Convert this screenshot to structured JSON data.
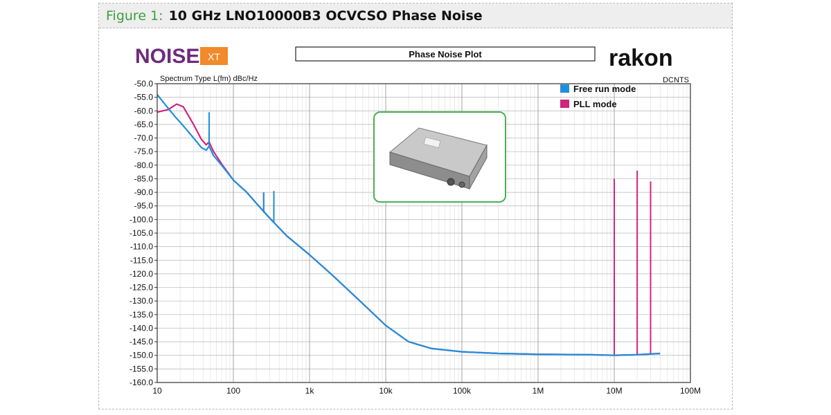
{
  "figure_caption": {
    "label": "Figure 1:",
    "text": "10 GHz  LNO10000B3 OCVCSO Phase Noise"
  },
  "logos": {
    "left_main": "NOISE",
    "left_badge": "XT",
    "right": "rakon"
  },
  "colors": {
    "free_run": "#1f8fdb",
    "pll": "#d0237e",
    "logo_purple": "#6e2a7d",
    "logo_orange": "#f08a2a",
    "photo_border": "#4caf50"
  },
  "chart_data": {
    "type": "line",
    "title": "Phase Noise Plot",
    "spectrum_label": "Spectrum Type   L(fm) dBc/Hz",
    "corner_label": "DCNTS",
    "xscale": "log",
    "xlim": [
      10,
      100000000
    ],
    "ylim": [
      -160,
      -50
    ],
    "y_step": 5,
    "grid": true,
    "legend_position": "top-right",
    "x_ticks": [
      {
        "v": 10,
        "label": "10"
      },
      {
        "v": 100,
        "label": "100"
      },
      {
        "v": 1000,
        "label": "1k"
      },
      {
        "v": 10000,
        "label": "10k"
      },
      {
        "v": 100000,
        "label": "100k"
      },
      {
        "v": 1000000,
        "label": "1M"
      },
      {
        "v": 10000000,
        "label": "10M"
      },
      {
        "v": 100000000,
        "label": "100M"
      }
    ],
    "y_ticks": [
      "-50.0",
      "-55.0",
      "-60.0",
      "-65.0",
      "-70.0",
      "-75.0",
      "-80.0",
      "-85.0",
      "-90.0",
      "-95.0",
      "-100.0",
      "-105.0",
      "-110.0",
      "-115.0",
      "-120.0",
      "-125.0",
      "-130.0",
      "-135.0",
      "-140.0",
      "-145.0",
      "-150.0",
      "-155.0",
      "-160.0"
    ],
    "series": [
      {
        "name": "Free run mode",
        "color": "#1f8fdb",
        "points": [
          [
            10,
            -54
          ],
          [
            13,
            -58
          ],
          [
            17,
            -62
          ],
          [
            22,
            -65.5
          ],
          [
            30,
            -70
          ],
          [
            38,
            -73.5
          ],
          [
            44,
            -74.5
          ],
          [
            48,
            -73
          ],
          [
            55,
            -76.5
          ],
          [
            70,
            -80
          ],
          [
            100,
            -85.5
          ],
          [
            150,
            -90
          ],
          [
            200,
            -94
          ],
          [
            300,
            -99.5
          ],
          [
            500,
            -106
          ],
          [
            1000,
            -113
          ],
          [
            2000,
            -120.5
          ],
          [
            5000,
            -131
          ],
          [
            10000,
            -139
          ],
          [
            20000,
            -145
          ],
          [
            40000,
            -147.5
          ],
          [
            100000,
            -148.7
          ],
          [
            300000,
            -149.3
          ],
          [
            1000000,
            -149.6
          ],
          [
            5000000,
            -149.8
          ],
          [
            10000000,
            -150
          ],
          [
            20000000,
            -149.8
          ],
          [
            40000000,
            -149.3
          ]
        ],
        "spurs": [
          [
            48,
            -60.5,
            -73
          ],
          [
            250,
            -90,
            -97.5
          ],
          [
            340,
            -89.5,
            -101
          ]
        ]
      },
      {
        "name": "PLL mode",
        "color": "#d0237e",
        "points": [
          [
            10,
            -60.5
          ],
          [
            14,
            -59.5
          ],
          [
            18,
            -57.5
          ],
          [
            22,
            -58.5
          ],
          [
            30,
            -65
          ],
          [
            38,
            -70.5
          ],
          [
            44,
            -72.5
          ],
          [
            48,
            -71.5
          ],
          [
            55,
            -75
          ],
          [
            70,
            -79.5
          ],
          [
            100,
            -85.5
          ],
          [
            150,
            -90
          ],
          [
            200,
            -94
          ],
          [
            300,
            -99.5
          ],
          [
            500,
            -106
          ],
          [
            1000,
            -113
          ],
          [
            2000,
            -120.5
          ],
          [
            5000,
            -131
          ],
          [
            10000,
            -139
          ],
          [
            20000,
            -145
          ],
          [
            40000,
            -147.5
          ],
          [
            100000,
            -148.7
          ],
          [
            300000,
            -149.3
          ],
          [
            1000000,
            -149.6
          ],
          [
            5000000,
            -149.8
          ],
          [
            10000000,
            -150
          ],
          [
            20000000,
            -149.8
          ],
          [
            40000000,
            -149.3
          ]
        ],
        "spurs": [
          [
            48,
            -67.5,
            -71.5
          ],
          [
            250,
            -90,
            -97
          ],
          [
            340,
            -90,
            -99
          ],
          [
            10000000,
            -85,
            -150
          ],
          [
            20000000,
            -82,
            -150
          ],
          [
            30000000,
            -86,
            -149.8
          ]
        ]
      }
    ]
  }
}
